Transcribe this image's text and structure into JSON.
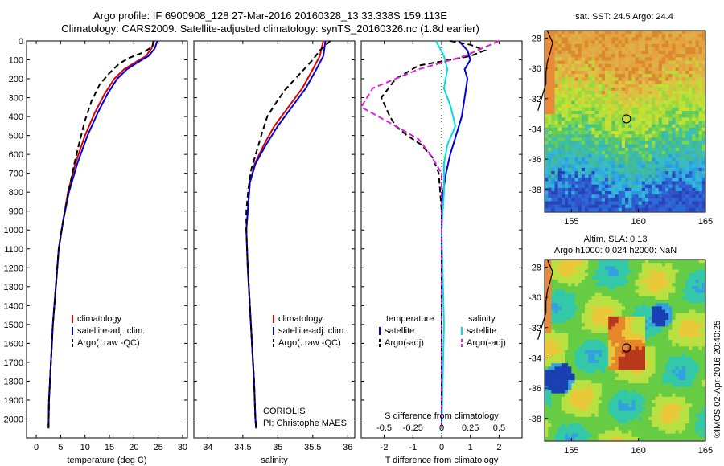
{
  "header": {
    "line1": "Argo profile: IF 6900908_128 27-Mar-2016 20160328_13 33.338S 159.113E",
    "line2": "Climatology: CARS2009. Satellite-adjusted climatology: synTS_20160326.nc (1.8d earlier)"
  },
  "colors": {
    "climatology": "#e00000",
    "satellite": "#0000dd",
    "argo": "#000000",
    "sat_salinity": "#00dddd",
    "argo_salinity": "#e020e0"
  },
  "chart_data": [
    {
      "type": "line",
      "id": "temperature",
      "xlabel": "temperature (deg C)",
      "ylabel": "",
      "xlim": [
        -2,
        31
      ],
      "ylim": [
        2100,
        0
      ],
      "xticks": [
        0,
        5,
        10,
        15,
        20,
        25,
        30
      ],
      "yticks": [
        0,
        100,
        200,
        300,
        400,
        500,
        600,
        700,
        800,
        900,
        1000,
        1100,
        1200,
        1300,
        1400,
        1500,
        1600,
        1700,
        1800,
        1900,
        2000
      ],
      "legend": [
        "climatology",
        "satellite-adj. clim.",
        "Argo(..raw -QC)"
      ],
      "series": [
        {
          "name": "climatology",
          "style": "solid",
          "color": "#e00000",
          "points": [
            [
              24.2,
              0
            ],
            [
              23.6,
              40
            ],
            [
              22.5,
              80
            ],
            [
              20.5,
              110
            ],
            [
              18,
              150
            ],
            [
              16,
              200
            ],
            [
              14,
              280
            ],
            [
              12,
              380
            ],
            [
              10,
              500
            ],
            [
              8,
              650
            ],
            [
              6.5,
              800
            ],
            [
              5.5,
              950
            ],
            [
              4.6,
              1100
            ],
            [
              4,
              1300
            ],
            [
              3.4,
              1500
            ],
            [
              3,
              1700
            ],
            [
              2.6,
              1900
            ],
            [
              2.5,
              2050
            ]
          ]
        },
        {
          "name": "satellite-adj. clim.",
          "style": "solid",
          "color": "#0000dd",
          "points": [
            [
              24.8,
              0
            ],
            [
              24.3,
              40
            ],
            [
              23,
              80
            ],
            [
              21,
              110
            ],
            [
              18.6,
              150
            ],
            [
              16.6,
              200
            ],
            [
              14.6,
              280
            ],
            [
              12.6,
              380
            ],
            [
              10.5,
              500
            ],
            [
              8.4,
              650
            ],
            [
              6.7,
              800
            ],
            [
              5.5,
              950
            ],
            [
              4.6,
              1100
            ],
            [
              4,
              1300
            ],
            [
              3.4,
              1500
            ],
            [
              3,
              1700
            ],
            [
              2.6,
              1900
            ],
            [
              2.5,
              2050
            ]
          ]
        },
        {
          "name": "Argo(..raw -QC)",
          "style": "dashed",
          "color": "#000000",
          "points": [
            [
              24,
              0
            ],
            [
              23.8,
              30
            ],
            [
              22,
              60
            ],
            [
              19,
              90
            ],
            [
              17,
              120
            ],
            [
              15,
              170
            ],
            [
              13,
              230
            ],
            [
              11.3,
              320
            ],
            [
              10,
              420
            ],
            [
              9,
              520
            ],
            [
              7.8,
              650
            ],
            [
              6.6,
              800
            ],
            [
              5.5,
              950
            ],
            [
              4.6,
              1100
            ],
            [
              4,
              1300
            ],
            [
              3.4,
              1500
            ],
            [
              3,
              1700
            ],
            [
              2.6,
              1900
            ],
            [
              2.5,
              2050
            ]
          ]
        }
      ]
    },
    {
      "type": "line",
      "id": "salinity",
      "xlabel": "salinity",
      "ylabel": "",
      "xlim": [
        33.8,
        36.1
      ],
      "ylim": [
        2100,
        0
      ],
      "xticks": [
        34,
        34.5,
        35,
        35.5,
        36
      ],
      "legend": [
        "climatology",
        "satellite-adj. clim.",
        "Argo(..raw -QC)"
      ],
      "series": [
        {
          "name": "climatology",
          "style": "solid",
          "color": "#e00000",
          "points": [
            [
              35.65,
              0
            ],
            [
              35.6,
              80
            ],
            [
              35.5,
              150
            ],
            [
              35.35,
              250
            ],
            [
              35.15,
              350
            ],
            [
              34.95,
              450
            ],
            [
              34.8,
              550
            ],
            [
              34.67,
              650
            ],
            [
              34.6,
              750
            ],
            [
              34.57,
              900
            ],
            [
              34.55,
              1000
            ],
            [
              34.57,
              1200
            ],
            [
              34.6,
              1400
            ],
            [
              34.63,
              1600
            ],
            [
              34.66,
              1800
            ],
            [
              34.68,
              2000
            ],
            [
              34.69,
              2050
            ]
          ]
        },
        {
          "name": "satellite-adj. clim.",
          "style": "solid",
          "color": "#0000dd",
          "points": [
            [
              35.68,
              0
            ],
            [
              35.65,
              80
            ],
            [
              35.55,
              150
            ],
            [
              35.4,
              250
            ],
            [
              35.2,
              350
            ],
            [
              35,
              450
            ],
            [
              34.83,
              550
            ],
            [
              34.68,
              650
            ],
            [
              34.6,
              750
            ],
            [
              34.57,
              900
            ],
            [
              34.55,
              1000
            ],
            [
              34.57,
              1200
            ],
            [
              34.6,
              1400
            ],
            [
              34.63,
              1600
            ],
            [
              34.66,
              1800
            ],
            [
              34.68,
              2000
            ],
            [
              34.69,
              2050
            ]
          ]
        },
        {
          "name": "Argo(..raw -QC)",
          "style": "dashed",
          "color": "#000000",
          "points": [
            [
              35.75,
              0
            ],
            [
              35.6,
              50
            ],
            [
              35.5,
              100
            ],
            [
              35.3,
              180
            ],
            [
              35.1,
              260
            ],
            [
              34.95,
              340
            ],
            [
              34.85,
              400
            ],
            [
              34.78,
              480
            ],
            [
              34.7,
              580
            ],
            [
              34.62,
              680
            ],
            [
              34.58,
              780
            ],
            [
              34.55,
              900
            ],
            [
              34.55,
              1000
            ],
            [
              34.57,
              1200
            ],
            [
              34.6,
              1400
            ],
            [
              34.63,
              1600
            ],
            [
              34.66,
              1800
            ],
            [
              34.68,
              2000
            ],
            [
              34.69,
              2050
            ]
          ]
        }
      ]
    },
    {
      "type": "line",
      "id": "differences",
      "xlabel": "T difference from climatology",
      "xlabel_top": "S difference from climatology",
      "xlim": [
        -2.8,
        2.8
      ],
      "ylim": [
        2100,
        0
      ],
      "xticks": [
        -2,
        -1,
        0,
        1,
        2
      ],
      "xticks_s": [
        -0.5,
        -0.25,
        0,
        0.25,
        0.5
      ],
      "legend_t_title": "temperature",
      "legend_s_title": "salinity",
      "legend": [
        "satellite",
        "Argo(-adj)",
        "satellite",
        "Argo(-adj)"
      ],
      "series": [
        {
          "name": "satellite",
          "quantity": "temperature",
          "style": "solid",
          "color": "#0000dd",
          "points": [
            [
              0.6,
              0
            ],
            [
              0.9,
              50
            ],
            [
              1,
              100
            ],
            [
              0.8,
              150
            ],
            [
              0.9,
              200
            ],
            [
              0.8,
              300
            ],
            [
              0.7,
              400
            ],
            [
              0.5,
              500
            ],
            [
              0.3,
              600
            ],
            [
              0.15,
              700
            ],
            [
              0.05,
              800
            ],
            [
              0.02,
              900
            ],
            [
              0,
              1000
            ],
            [
              0,
              2050
            ]
          ]
        },
        {
          "name": "Argo(-adj)",
          "quantity": "temperature",
          "style": "dashed",
          "color": "#000000",
          "points": [
            [
              0.3,
              0
            ],
            [
              1,
              20
            ],
            [
              1.5,
              50
            ],
            [
              1,
              80
            ],
            [
              0.3,
              100
            ],
            [
              -0.8,
              130
            ],
            [
              -1.6,
              200
            ],
            [
              -2.1,
              300
            ],
            [
              -1.8,
              400
            ],
            [
              -1.6,
              450
            ],
            [
              -1.2,
              500
            ],
            [
              -0.7,
              550
            ],
            [
              -0.3,
              620
            ],
            [
              -0.1,
              700
            ],
            [
              -0.05,
              800
            ],
            [
              0,
              900
            ],
            [
              0,
              2050
            ]
          ]
        },
        {
          "name": "satellite",
          "quantity": "salinity",
          "style": "solid",
          "color": "#00dddd",
          "points": [
            [
              -0.05,
              0
            ],
            [
              0.02,
              80
            ],
            [
              0.05,
              150
            ],
            [
              0.02,
              250
            ],
            [
              0.08,
              350
            ],
            [
              0.12,
              450
            ],
            [
              0.05,
              550
            ],
            [
              0.02,
              650
            ],
            [
              0.02,
              800
            ],
            [
              0,
              1000
            ],
            [
              0.02,
              1500
            ],
            [
              0,
              2050
            ]
          ]
        },
        {
          "name": "Argo(-adj)",
          "quantity": "salinity",
          "style": "dashed",
          "color": "#e020e0",
          "points": [
            [
              0.5,
              0
            ],
            [
              0.2,
              80
            ],
            [
              -0.2,
              150
            ],
            [
              -0.6,
              250
            ],
            [
              -0.7,
              350
            ],
            [
              -0.4,
              450
            ],
            [
              -0.2,
              520
            ],
            [
              -0.1,
              600
            ],
            [
              0,
              700
            ],
            [
              0,
              2050
            ]
          ]
        }
      ]
    },
    {
      "type": "heatmap",
      "id": "sst_map",
      "title": "sat. SST: 24.5 Argo: 24.4",
      "xlim": [
        153,
        165
      ],
      "ylim": [
        -39.5,
        -27.5
      ],
      "xticks": [
        155,
        160,
        165
      ],
      "yticks": [
        -28,
        -30,
        -32,
        -34,
        -36,
        -38
      ],
      "argo_position": [
        159.113,
        -33.338
      ]
    },
    {
      "type": "heatmap",
      "id": "sla_map",
      "title": "Altim. SLA: 0.13",
      "subtitle": "Argo h1000: 0.024 h2000: NaN",
      "xlim": [
        153,
        165
      ],
      "ylim": [
        -39.5,
        -27.5
      ],
      "xticks": [
        155,
        160,
        165
      ],
      "yticks": [
        -28,
        -30,
        -32,
        -34,
        -36,
        -38
      ],
      "argo_position": [
        159.113,
        -33.338
      ]
    }
  ],
  "annotations": {
    "institution": "CORIOLIS",
    "pi": "PI: Christophe MAES",
    "credit": "©IMOS 02-Apr-2016 20:40:25"
  }
}
